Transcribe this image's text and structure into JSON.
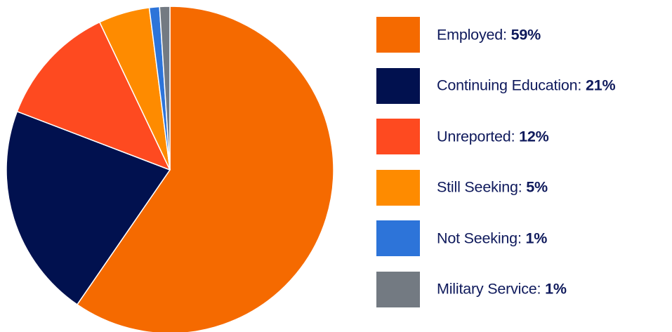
{
  "chart_data": {
    "type": "pie",
    "slices": [
      {
        "label": "Employed",
        "value": 59,
        "display_value": "59%",
        "color": "#f56a00"
      },
      {
        "label": "Continuing Education",
        "value": 21,
        "display_value": "21%",
        "color": "#01114f"
      },
      {
        "label": "Unreported",
        "value": 12,
        "display_value": "12%",
        "color": "#fe4a20"
      },
      {
        "label": "Still Seeking",
        "value": 5,
        "display_value": "5%",
        "color": "#fe8b00"
      },
      {
        "label": "Not Seeking",
        "value": 1,
        "display_value": "1%",
        "color": "#2d74d9"
      },
      {
        "label": "Military Service",
        "value": 1,
        "display_value": "1%",
        "color": "#737a82"
      }
    ],
    "legend_position": "right",
    "start_angle": "top",
    "direction": "clockwise"
  },
  "style": {
    "legend_text_color": "#0f1a5c",
    "slice_border_color": "#ffffff"
  }
}
